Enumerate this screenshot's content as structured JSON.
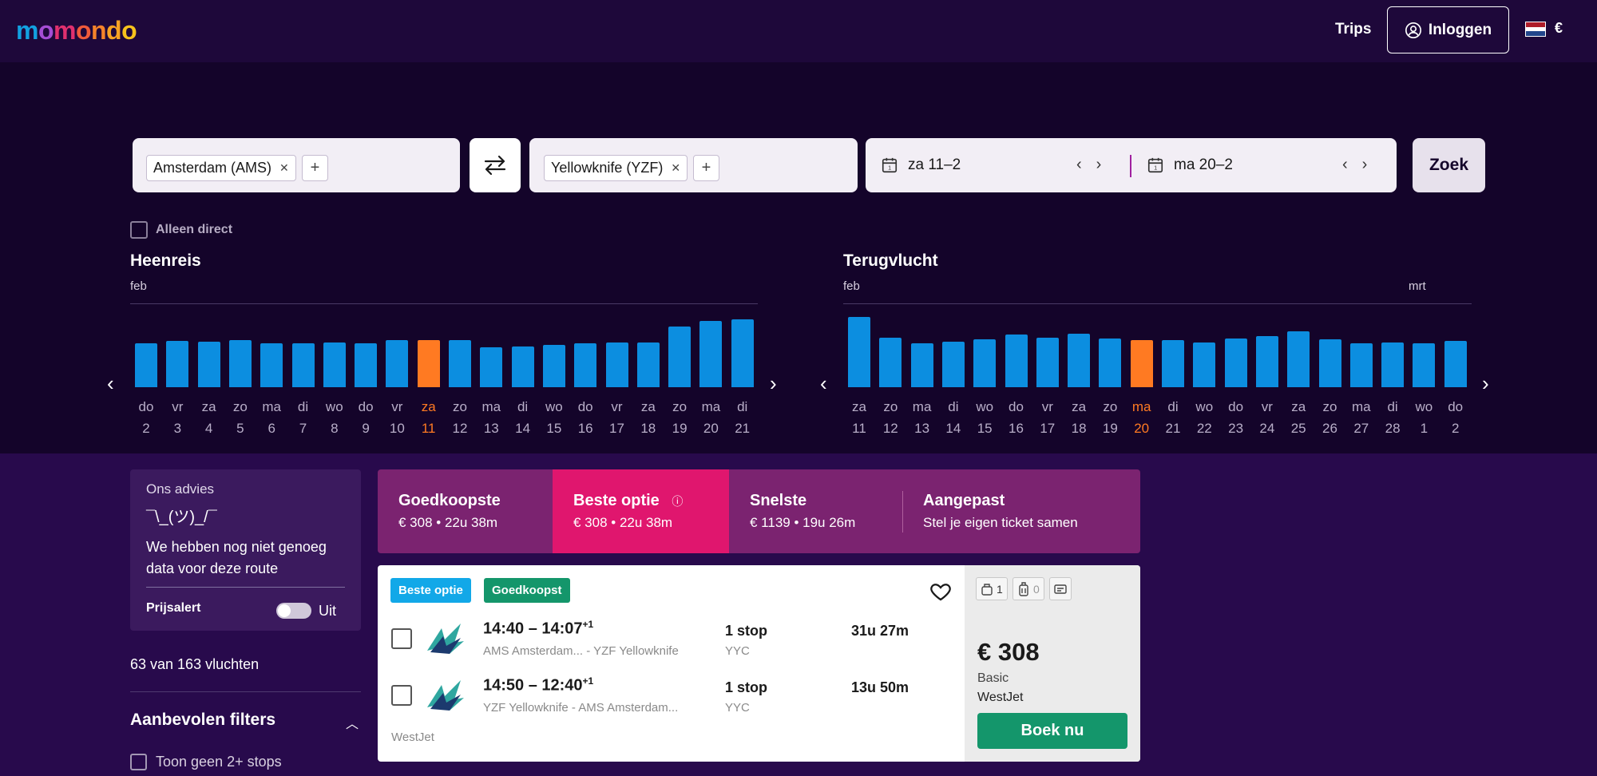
{
  "header": {
    "logo": [
      "m",
      "o",
      "m",
      "o",
      "n",
      "d",
      "o"
    ],
    "logo_colors": [
      "#12a0e0",
      "#a54dd4",
      "#e0306e",
      "#f05a3a",
      "#f5832a",
      "#f7a223",
      "#f7c21c"
    ],
    "trips_label": "Trips",
    "login_label": "Inloggen",
    "currency": "€",
    "flag_colors": [
      "#ae1c28",
      "#ffffff",
      "#21468b"
    ]
  },
  "search": {
    "origin": "Amsterdam (AMS)",
    "destination": "Yellowknife (YZF)",
    "depart_date": "za 11–2",
    "return_date": "ma 20–2",
    "search_label": "Zoek",
    "add_icon": "plus-icon",
    "swap_icon": "swap-icon",
    "calendar_icon": "calendar-icon"
  },
  "direct_only_label": "Alleen direct",
  "outbound": {
    "title": "Heenreis",
    "month": "feb",
    "days": [
      {
        "wd": "do",
        "d": "2",
        "h": 0.63,
        "sel": false
      },
      {
        "wd": "vr",
        "d": "3",
        "h": 0.66,
        "sel": false
      },
      {
        "wd": "za",
        "d": "4",
        "h": 0.65,
        "sel": false
      },
      {
        "wd": "zo",
        "d": "5",
        "h": 0.67,
        "sel": false
      },
      {
        "wd": "ma",
        "d": "6",
        "h": 0.63,
        "sel": false
      },
      {
        "wd": "di",
        "d": "7",
        "h": 0.63,
        "sel": false
      },
      {
        "wd": "wo",
        "d": "8",
        "h": 0.64,
        "sel": false
      },
      {
        "wd": "do",
        "d": "9",
        "h": 0.63,
        "sel": false
      },
      {
        "wd": "vr",
        "d": "10",
        "h": 0.67,
        "sel": false
      },
      {
        "wd": "za",
        "d": "11",
        "h": 0.67,
        "sel": true
      },
      {
        "wd": "zo",
        "d": "12",
        "h": 0.67,
        "sel": false
      },
      {
        "wd": "ma",
        "d": "13",
        "h": 0.57,
        "sel": false
      },
      {
        "wd": "di",
        "d": "14",
        "h": 0.58,
        "sel": false
      },
      {
        "wd": "wo",
        "d": "15",
        "h": 0.6,
        "sel": false
      },
      {
        "wd": "do",
        "d": "16",
        "h": 0.63,
        "sel": false
      },
      {
        "wd": "vr",
        "d": "17",
        "h": 0.64,
        "sel": false
      },
      {
        "wd": "za",
        "d": "18",
        "h": 0.64,
        "sel": false
      },
      {
        "wd": "zo",
        "d": "19",
        "h": 0.86,
        "sel": false
      },
      {
        "wd": "ma",
        "d": "20",
        "h": 0.94,
        "sel": false
      },
      {
        "wd": "di",
        "d": "21",
        "h": 0.97,
        "sel": false
      }
    ]
  },
  "return": {
    "title": "Terugvlucht",
    "month": "feb",
    "month2": "mrt",
    "days": [
      {
        "wd": "za",
        "d": "11",
        "h": 1.0,
        "sel": false
      },
      {
        "wd": "zo",
        "d": "12",
        "h": 0.71,
        "sel": false
      },
      {
        "wd": "ma",
        "d": "13",
        "h": 0.62,
        "sel": false
      },
      {
        "wd": "di",
        "d": "14",
        "h": 0.65,
        "sel": false
      },
      {
        "wd": "wo",
        "d": "15",
        "h": 0.68,
        "sel": false
      },
      {
        "wd": "do",
        "d": "16",
        "h": 0.75,
        "sel": false
      },
      {
        "wd": "vr",
        "d": "17",
        "h": 0.7,
        "sel": false
      },
      {
        "wd": "za",
        "d": "18",
        "h": 0.76,
        "sel": false
      },
      {
        "wd": "zo",
        "d": "19",
        "h": 0.69,
        "sel": false
      },
      {
        "wd": "ma",
        "d": "20",
        "h": 0.67,
        "sel": true
      },
      {
        "wd": "di",
        "d": "21",
        "h": 0.67,
        "sel": false
      },
      {
        "wd": "wo",
        "d": "22",
        "h": 0.64,
        "sel": false
      },
      {
        "wd": "do",
        "d": "23",
        "h": 0.69,
        "sel": false
      },
      {
        "wd": "vr",
        "d": "24",
        "h": 0.73,
        "sel": false
      },
      {
        "wd": "za",
        "d": "25",
        "h": 0.8,
        "sel": false
      },
      {
        "wd": "zo",
        "d": "26",
        "h": 0.68,
        "sel": false
      },
      {
        "wd": "ma",
        "d": "27",
        "h": 0.63,
        "sel": false
      },
      {
        "wd": "di",
        "d": "28",
        "h": 0.64,
        "sel": false
      },
      {
        "wd": "wo",
        "d": "1",
        "h": 0.62,
        "sel": false
      },
      {
        "wd": "do",
        "d": "2",
        "h": 0.66,
        "sel": false
      }
    ]
  },
  "advice": {
    "label": "Ons advies",
    "shrug": "¯\\_(ツ)_/¯",
    "message": "We hebben nog niet genoeg data voor deze route",
    "price_alert_label": "Prijsalert",
    "toggle_state": "Uit"
  },
  "result_count": "63 van 163 vluchten",
  "filters": {
    "title": "Aanbevolen filters",
    "option": "Toon geen 2+ stops"
  },
  "sort_tabs": [
    {
      "title": "Goedkoopste",
      "sub": "€ 308 • 22u 38m"
    },
    {
      "title": "Beste optie",
      "sub": "€ 308 • 22u 38m"
    },
    {
      "title": "Snelste",
      "sub": "€ 1139 • 19u 26m"
    },
    {
      "title": "Aangepast",
      "sub": "Stel je eigen ticket samen"
    }
  ],
  "result": {
    "badge_best": "Beste optie",
    "badge_cheapest": "Goedkoopst",
    "legs": [
      {
        "times": "14:40 – 14:07",
        "plus": "+1",
        "route": "AMS Amsterdam... - YZF Yellowknife",
        "stops": "1 stop",
        "via": "YYC",
        "duration": "31u 27m"
      },
      {
        "times": "14:50 – 12:40",
        "plus": "+1",
        "route": "YZF Yellowknife - AMS Amsterdam...",
        "stops": "1 stop",
        "via": "YYC",
        "duration": "13u 50m"
      }
    ],
    "carrier": "WestJet",
    "carry_on_count": "1",
    "checked_bag_count": "0",
    "price": "€ 308",
    "fare_class": "Basic",
    "price_carrier": "WestJet",
    "book_label": "Boek nu"
  },
  "colors": {
    "bar": "#0c8ee0",
    "bar_selected": "#ff7a22",
    "best_badge": "#12a8e8",
    "cheapest_badge": "#14966b",
    "active_tab": "#e0166e",
    "book_button": "#14966b"
  }
}
